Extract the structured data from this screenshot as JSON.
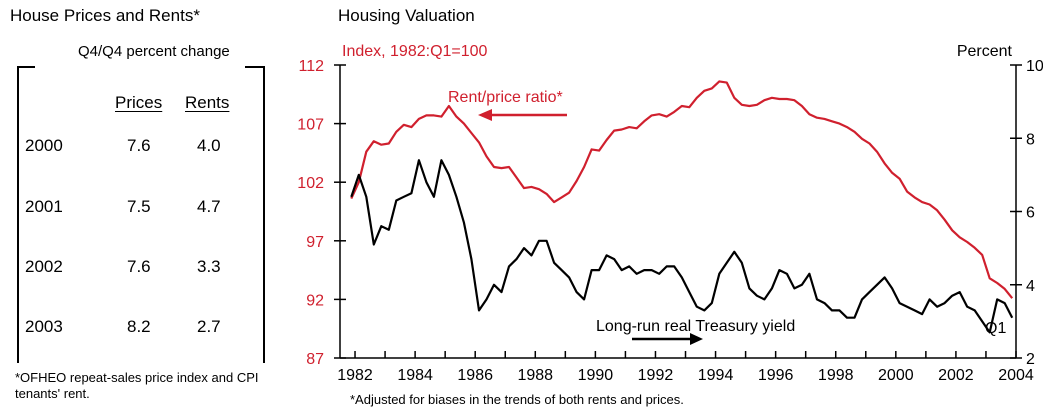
{
  "left_panel": {
    "title": "House Prices and Rents*",
    "subtitle": "Q4/Q4 percent change",
    "columns": [
      "Prices",
      "Rents"
    ],
    "rows": [
      {
        "year": "2000",
        "prices": "7.6",
        "rents": "4.0"
      },
      {
        "year": "2001",
        "prices": "7.5",
        "rents": "4.7"
      },
      {
        "year": "2002",
        "prices": "7.6",
        "rents": "3.3"
      },
      {
        "year": "2003",
        "prices": "8.2",
        "rents": "2.7"
      }
    ],
    "footnote": "*OFHEO repeat-sales price index and CPI tenants' rent."
  },
  "chart_data": {
    "type": "line",
    "title": "Housing Valuation",
    "footnote": "*Adjusted for biases in the trends of both rents and prices.",
    "left_axis": {
      "label": "Index, 1982:Q1=100",
      "range": [
        87,
        112
      ],
      "ticks": [
        87,
        92,
        97,
        102,
        107,
        112
      ],
      "color": "#d0202e"
    },
    "right_axis": {
      "label": "Percent",
      "range": [
        2,
        10
      ],
      "ticks": [
        2,
        4,
        6,
        8,
        10
      ]
    },
    "x_axis": {
      "range": [
        1981.5,
        2004.0
      ],
      "tick_labels": [
        "1982",
        "1984",
        "1986",
        "1988",
        "1990",
        "1992",
        "1994",
        "1996",
        "1998",
        "2000",
        "2002",
        "2004"
      ]
    },
    "grid": false,
    "series": [
      {
        "name": "Rent/price ratio*",
        "axis": "left",
        "color": "#d0202e",
        "arrow": "left",
        "x": [
          1981.875,
          1982.125,
          1982.375,
          1982.625,
          1982.875,
          1983.125,
          1983.375,
          1983.625,
          1983.875,
          1984.125,
          1984.375,
          1984.625,
          1984.875,
          1985.125,
          1985.375,
          1985.625,
          1985.875,
          1986.125,
          1986.375,
          1986.625,
          1986.875,
          1987.125,
          1987.375,
          1987.625,
          1987.875,
          1988.125,
          1988.375,
          1988.625,
          1988.875,
          1989.125,
          1989.375,
          1989.625,
          1989.875,
          1990.125,
          1990.375,
          1990.625,
          1990.875,
          1991.125,
          1991.375,
          1991.625,
          1991.875,
          1992.125,
          1992.375,
          1992.625,
          1992.875,
          1993.125,
          1993.375,
          1993.625,
          1993.875,
          1994.125,
          1994.375,
          1994.625,
          1994.875,
          1995.125,
          1995.375,
          1995.625,
          1995.875,
          1996.125,
          1996.375,
          1996.625,
          1996.875,
          1997.125,
          1997.375,
          1997.625,
          1997.875,
          1998.125,
          1998.375,
          1998.625,
          1998.875,
          1999.125,
          1999.375,
          1999.625,
          1999.875,
          2000.125,
          2000.375,
          2000.625,
          2000.875,
          2001.125,
          2001.375,
          2001.625,
          2001.875,
          2002.125,
          2002.375,
          2002.625,
          2002.875,
          2003.125,
          2003.375,
          2003.625,
          2003.875
        ],
        "y": [
          100.6,
          102.0,
          104.6,
          105.5,
          105.2,
          105.3,
          106.3,
          106.9,
          106.7,
          107.4,
          107.7,
          107.7,
          107.6,
          108.5,
          107.6,
          107.0,
          106.2,
          105.4,
          104.2,
          103.3,
          103.2,
          103.3,
          102.4,
          101.5,
          101.6,
          101.4,
          101.0,
          100.3,
          100.7,
          101.1,
          102.1,
          103.3,
          104.8,
          104.7,
          105.6,
          106.4,
          106.5,
          106.7,
          106.6,
          107.2,
          107.7,
          107.8,
          107.6,
          108.0,
          108.5,
          108.4,
          109.2,
          109.8,
          110.0,
          110.6,
          110.5,
          109.2,
          108.6,
          108.5,
          108.6,
          109.0,
          109.2,
          109.1,
          109.1,
          109.0,
          108.5,
          107.8,
          107.5,
          107.4,
          107.2,
          107.0,
          106.7,
          106.3,
          105.7,
          105.3,
          104.6,
          103.6,
          102.8,
          102.3,
          101.2,
          100.7,
          100.3,
          100.1,
          99.6,
          98.8,
          97.9,
          97.3,
          96.9,
          96.4,
          95.8,
          93.8,
          93.4,
          92.9,
          92.1
        ],
        "end_label": ""
      },
      {
        "name": "Long-run real Treasury yield",
        "axis": "right",
        "color": "#000000",
        "arrow": "right",
        "x": [
          1981.875,
          1982.125,
          1982.375,
          1982.625,
          1982.875,
          1983.125,
          1983.375,
          1983.625,
          1983.875,
          1984.125,
          1984.375,
          1984.625,
          1984.875,
          1985.125,
          1985.375,
          1985.625,
          1985.875,
          1986.125,
          1986.375,
          1986.625,
          1986.875,
          1987.125,
          1987.375,
          1987.625,
          1987.875,
          1988.125,
          1988.375,
          1988.625,
          1988.875,
          1989.125,
          1989.375,
          1989.625,
          1989.875,
          1990.125,
          1990.375,
          1990.625,
          1990.875,
          1991.125,
          1991.375,
          1991.625,
          1991.875,
          1992.125,
          1992.375,
          1992.625,
          1992.875,
          1993.125,
          1993.375,
          1993.625,
          1993.875,
          1994.125,
          1994.375,
          1994.625,
          1994.875,
          1995.125,
          1995.375,
          1995.625,
          1995.875,
          1996.125,
          1996.375,
          1996.625,
          1996.875,
          1997.125,
          1997.375,
          1997.625,
          1997.875,
          1998.125,
          1998.375,
          1998.625,
          1998.875,
          1999.125,
          1999.375,
          1999.625,
          1999.875,
          2000.125,
          2000.375,
          2000.625,
          2000.875,
          2001.125,
          2001.375,
          2001.625,
          2001.875,
          2002.125,
          2002.375,
          2002.625,
          2002.875,
          2003.125,
          2003.375,
          2003.625,
          2003.875
        ],
        "y": [
          6.4,
          7.0,
          6.4,
          5.1,
          5.6,
          5.5,
          6.3,
          6.4,
          6.5,
          7.4,
          6.8,
          6.4,
          7.4,
          7.0,
          6.4,
          5.7,
          4.7,
          3.3,
          3.6,
          4.0,
          3.8,
          4.5,
          4.7,
          5.0,
          4.8,
          5.2,
          5.2,
          4.6,
          4.4,
          4.2,
          3.8,
          3.6,
          4.4,
          4.4,
          4.8,
          4.7,
          4.4,
          4.5,
          4.3,
          4.4,
          4.4,
          4.3,
          4.5,
          4.5,
          4.2,
          3.8,
          3.4,
          3.3,
          3.5,
          4.3,
          4.6,
          4.9,
          4.6,
          3.9,
          3.7,
          3.6,
          3.9,
          4.4,
          4.3,
          3.9,
          4.0,
          4.3,
          3.6,
          3.5,
          3.3,
          3.3,
          3.1,
          3.1,
          3.6,
          3.8,
          4.0,
          4.2,
          3.9,
          3.5,
          3.4,
          3.3,
          3.2,
          3.6,
          3.4,
          3.5,
          3.7,
          3.8,
          3.4,
          3.3,
          3.0,
          2.7,
          3.6,
          3.5,
          3.1
        ],
        "end_label": "Q1"
      }
    ],
    "x_axis_labels_years": [
      1982,
      1984,
      1986,
      1988,
      1990,
      1992,
      1994,
      1996,
      1998,
      2000,
      2002,
      2004
    ]
  }
}
